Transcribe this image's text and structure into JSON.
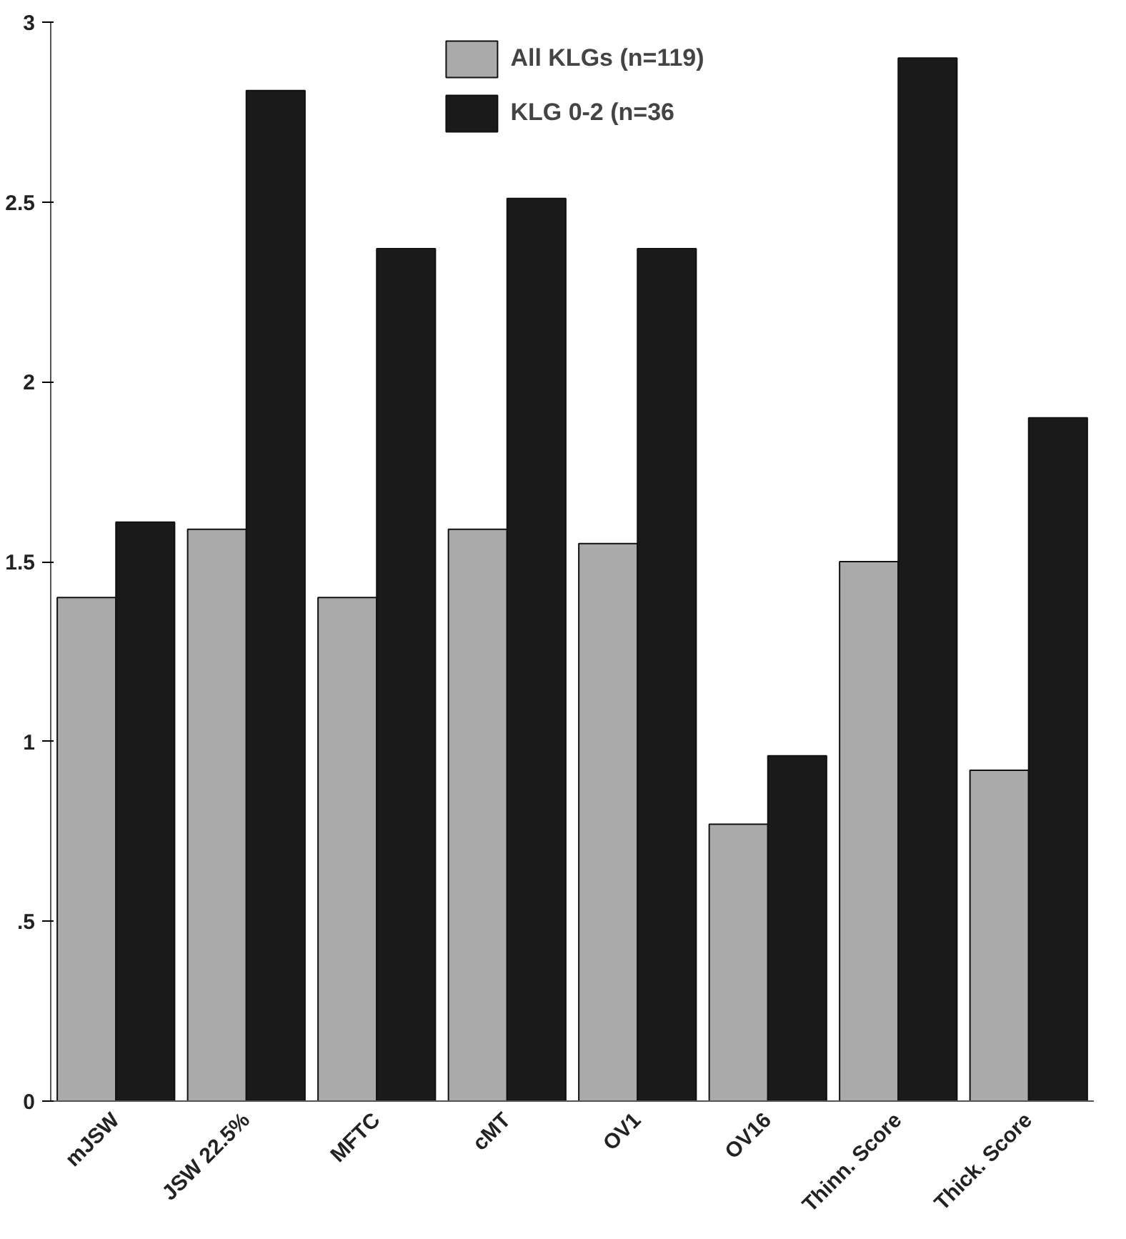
{
  "chart_data": {
    "type": "bar",
    "categories": [
      "mJSW",
      "JSW 22.5%",
      "MFTC",
      "cMT",
      "OV1",
      "OV16",
      "Thinn. Score",
      "Thick. Score"
    ],
    "series": [
      {
        "name": "All KLGs (n=119)",
        "color": "#aaaaaa",
        "values": [
          1.4,
          1.59,
          1.4,
          1.59,
          1.55,
          0.77,
          1.5,
          0.92
        ]
      },
      {
        "name": "KLG 0-2 (n=36",
        "color": "#1a1a1a",
        "values": [
          1.61,
          2.81,
          2.37,
          2.51,
          2.37,
          0.96,
          2.9,
          1.9
        ]
      }
    ],
    "ylim": [
      0,
      3
    ],
    "yticks": [
      0,
      {
        "value": 0.5,
        "label": ".5"
      },
      1,
      1.5,
      2,
      2.5,
      3
    ],
    "grid": false,
    "legend": "top"
  }
}
